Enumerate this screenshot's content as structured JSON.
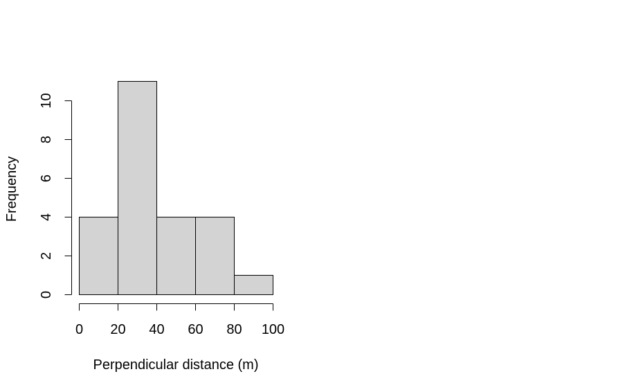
{
  "chart_data": {
    "type": "bar",
    "title": "",
    "xlabel": "Perpendicular distance (m)",
    "ylabel": "Frequency",
    "bins": [
      [
        0,
        20
      ],
      [
        20,
        40
      ],
      [
        40,
        60
      ],
      [
        60,
        80
      ],
      [
        80,
        100
      ]
    ],
    "values": [
      4,
      11,
      4,
      4,
      1
    ],
    "x_ticks": [
      0,
      20,
      40,
      60,
      80,
      100
    ],
    "x_tick_labels": [
      "0",
      "20",
      "40",
      "60",
      "80",
      "100"
    ],
    "y_ticks": [
      0,
      2,
      4,
      6,
      8,
      10
    ],
    "y_tick_labels": [
      "0",
      "2",
      "4",
      "6",
      "8",
      "10"
    ],
    "xlim": [
      0,
      100
    ],
    "ylim": [
      0,
      11
    ],
    "grid": false,
    "legend": "none",
    "bar_color": "#d3d3d3",
    "border_color": "#000000"
  }
}
